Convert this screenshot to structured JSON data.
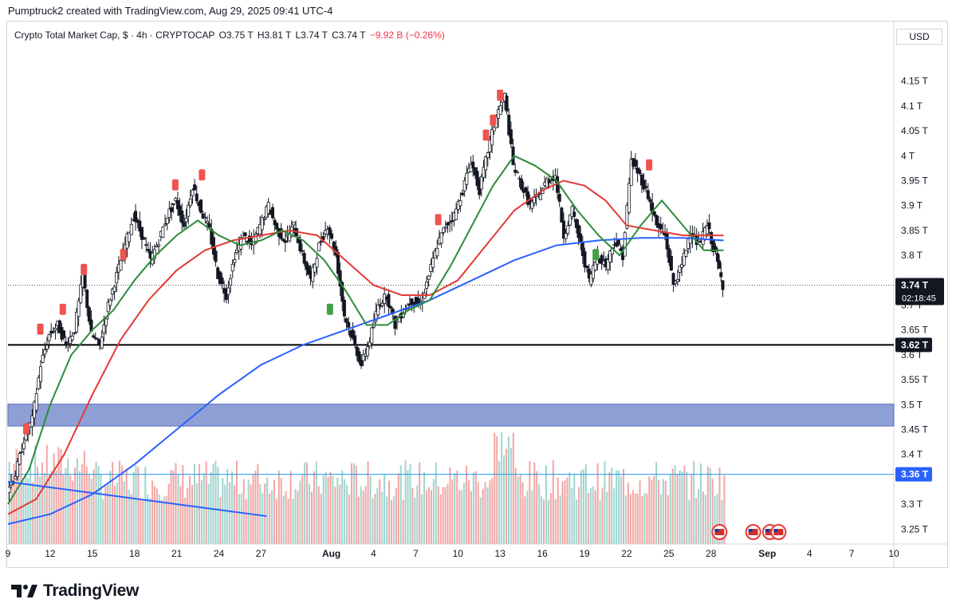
{
  "header": {
    "text": "Pumptruck2 created with TradingView.com, Aug 29, 2025 09:41 UTC-4"
  },
  "legend": {
    "symbol": "Crypto Total Market Cap, $ · 4h · CRYPTOCAP",
    "open_label": "O",
    "open": "3.75 T",
    "high_label": "H",
    "high": "3.81 T",
    "low_label": "L",
    "low": "3.74 T",
    "close_label": "C",
    "close": "3.74 T",
    "change": "−9.92 B (−0.26%)"
  },
  "axis_unit": "USD",
  "price_tag": {
    "value": "3.74 T",
    "countdown": "02:18:45"
  },
  "brand": {
    "name": "TradingView",
    "icon": "tradingview-logo-icon"
  },
  "colors": {
    "up": "#26a69a",
    "down": "#ef5350",
    "ema_fast": "#2e8b3a",
    "ema_mid": "#e53935",
    "ema_slow": "#2962ff",
    "zone": "#7b8fd0",
    "support": "#000000",
    "volume_up": "#9fd5cf",
    "volume_down": "#f3a6a4"
  },
  "chart_data": {
    "type": "candlestick",
    "y_ticks": [
      "4.15 T",
      "4.1 T",
      "4.05 T",
      "4 T",
      "3.95 T",
      "3.9 T",
      "3.85 T",
      "3.8 T",
      "3.7 T",
      "3.65 T",
      "3.6 T",
      "3.55 T",
      "3.5 T",
      "3.45 T",
      "3.4 T",
      "3.3 T",
      "3.25 T"
    ],
    "y_tick_values": [
      4.15,
      4.1,
      4.05,
      4.0,
      3.95,
      3.9,
      3.85,
      3.8,
      3.7,
      3.65,
      3.6,
      3.55,
      3.5,
      3.45,
      3.4,
      3.3,
      3.25
    ],
    "ylim": [
      3.22,
      4.22
    ],
    "x_ticks": [
      "9",
      "12",
      "15",
      "18",
      "21",
      "24",
      "27",
      "Aug",
      "4",
      "7",
      "10",
      "13",
      "16",
      "19",
      "22",
      "25",
      "28",
      "Sep",
      "4",
      "7",
      "10"
    ],
    "x_tick_days": [
      9,
      12,
      15,
      18,
      21,
      24,
      27,
      32,
      35,
      38,
      41,
      44,
      47,
      50,
      53,
      56,
      59,
      63,
      66,
      69,
      72
    ],
    "xlim_days": [
      9,
      72
    ],
    "x_note": "days counted from July 0, 2025 (Aug 1 = 32, Sep 1 = 63)",
    "support_level": {
      "value": 3.62,
      "label": "3.62 T"
    },
    "volume_level": {
      "value": 3.36,
      "label": "3.36 T"
    },
    "demand_zone": [
      3.457,
      3.501
    ],
    "ohlc_path": [
      [
        9,
        3.33
      ],
      [
        9.6,
        3.36
      ],
      [
        10.2,
        3.43
      ],
      [
        10.8,
        3.47
      ],
      [
        11.4,
        3.58
      ],
      [
        12,
        3.64
      ],
      [
        12.6,
        3.66
      ],
      [
        13.2,
        3.62
      ],
      [
        13.8,
        3.65
      ],
      [
        14.4,
        3.76
      ],
      [
        15,
        3.64
      ],
      [
        15.6,
        3.62
      ],
      [
        16.2,
        3.7
      ],
      [
        16.8,
        3.76
      ],
      [
        17.4,
        3.82
      ],
      [
        18,
        3.88
      ],
      [
        18.6,
        3.84
      ],
      [
        19.2,
        3.79
      ],
      [
        19.8,
        3.83
      ],
      [
        20.4,
        3.88
      ],
      [
        21,
        3.91
      ],
      [
        21.6,
        3.86
      ],
      [
        22.2,
        3.94
      ],
      [
        22.8,
        3.89
      ],
      [
        23.4,
        3.85
      ],
      [
        24,
        3.76
      ],
      [
        24.6,
        3.72
      ],
      [
        25.2,
        3.8
      ],
      [
        25.8,
        3.84
      ],
      [
        26.4,
        3.82
      ],
      [
        27,
        3.86
      ],
      [
        27.6,
        3.9
      ],
      [
        28.2,
        3.85
      ],
      [
        28.8,
        3.83
      ],
      [
        29.4,
        3.86
      ],
      [
        30,
        3.8
      ],
      [
        30.6,
        3.75
      ],
      [
        31.2,
        3.82
      ],
      [
        31.8,
        3.86
      ],
      [
        32.4,
        3.8
      ],
      [
        33,
        3.68
      ],
      [
        33.6,
        3.63
      ],
      [
        34.2,
        3.58
      ],
      [
        34.8,
        3.63
      ],
      [
        35.4,
        3.7
      ],
      [
        36,
        3.72
      ],
      [
        36.6,
        3.66
      ],
      [
        37.2,
        3.69
      ],
      [
        37.8,
        3.71
      ],
      [
        38.4,
        3.7
      ],
      [
        39,
        3.76
      ],
      [
        39.6,
        3.82
      ],
      [
        40.2,
        3.86
      ],
      [
        40.8,
        3.88
      ],
      [
        41.4,
        3.93
      ],
      [
        42,
        3.99
      ],
      [
        42.6,
        3.93
      ],
      [
        43.2,
        4.01
      ],
      [
        43.8,
        4.08
      ],
      [
        44.4,
        4.12
      ],
      [
        45,
        3.98
      ],
      [
        45.6,
        3.94
      ],
      [
        46.2,
        3.9
      ],
      [
        46.8,
        3.92
      ],
      [
        47.4,
        3.95
      ],
      [
        48,
        3.96
      ],
      [
        48.6,
        3.84
      ],
      [
        49.2,
        3.89
      ],
      [
        49.8,
        3.82
      ],
      [
        50.4,
        3.75
      ],
      [
        51,
        3.8
      ],
      [
        51.6,
        3.78
      ],
      [
        52.2,
        3.83
      ],
      [
        52.8,
        3.8
      ],
      [
        53.4,
        3.99
      ],
      [
        54,
        3.96
      ],
      [
        54.6,
        3.92
      ],
      [
        55.2,
        3.86
      ],
      [
        55.8,
        3.84
      ],
      [
        56.4,
        3.74
      ],
      [
        57,
        3.78
      ],
      [
        57.6,
        3.85
      ],
      [
        58.2,
        3.82
      ],
      [
        58.8,
        3.86
      ],
      [
        59.4,
        3.8
      ],
      [
        59.9,
        3.74
      ]
    ],
    "ema_fast_path": [
      [
        9,
        3.3
      ],
      [
        10.5,
        3.37
      ],
      [
        12,
        3.5
      ],
      [
        13.5,
        3.6
      ],
      [
        15,
        3.65
      ],
      [
        16.5,
        3.69
      ],
      [
        18,
        3.75
      ],
      [
        19.5,
        3.8
      ],
      [
        21,
        3.84
      ],
      [
        22.5,
        3.87
      ],
      [
        24,
        3.84
      ],
      [
        25.5,
        3.82
      ],
      [
        27,
        3.83
      ],
      [
        28.5,
        3.85
      ],
      [
        30,
        3.83
      ],
      [
        31.5,
        3.79
      ],
      [
        33,
        3.73
      ],
      [
        34.5,
        3.66
      ],
      [
        36,
        3.66
      ],
      [
        37.5,
        3.69
      ],
      [
        39,
        3.71
      ],
      [
        40.5,
        3.78
      ],
      [
        42,
        3.86
      ],
      [
        43.5,
        3.94
      ],
      [
        45,
        4.0
      ],
      [
        46.5,
        3.98
      ],
      [
        48,
        3.95
      ],
      [
        49.5,
        3.89
      ],
      [
        51,
        3.84
      ],
      [
        52.5,
        3.8
      ],
      [
        54,
        3.86
      ],
      [
        55.5,
        3.91
      ],
      [
        57,
        3.86
      ],
      [
        58.5,
        3.81
      ],
      [
        59.9,
        3.81
      ]
    ],
    "ema_mid_path": [
      [
        9,
        3.28
      ],
      [
        11,
        3.31
      ],
      [
        13,
        3.4
      ],
      [
        15,
        3.52
      ],
      [
        17,
        3.63
      ],
      [
        19,
        3.71
      ],
      [
        21,
        3.77
      ],
      [
        23,
        3.81
      ],
      [
        25,
        3.83
      ],
      [
        27,
        3.84
      ],
      [
        29,
        3.85
      ],
      [
        31,
        3.84
      ],
      [
        33,
        3.79
      ],
      [
        35,
        3.74
      ],
      [
        37,
        3.72
      ],
      [
        39,
        3.72
      ],
      [
        41,
        3.75
      ],
      [
        43,
        3.82
      ],
      [
        45,
        3.89
      ],
      [
        47,
        3.93
      ],
      [
        48.5,
        3.95
      ],
      [
        50,
        3.94
      ],
      [
        51.5,
        3.91
      ],
      [
        53,
        3.86
      ],
      [
        55,
        3.85
      ],
      [
        57,
        3.84
      ],
      [
        58.5,
        3.84
      ],
      [
        59.9,
        3.84
      ]
    ],
    "ema_slow_path": [
      [
        9,
        3.26
      ],
      [
        12,
        3.28
      ],
      [
        15,
        3.32
      ],
      [
        18,
        3.38
      ],
      [
        21,
        3.45
      ],
      [
        24,
        3.52
      ],
      [
        27,
        3.58
      ],
      [
        30,
        3.62
      ],
      [
        33,
        3.65
      ],
      [
        36,
        3.68
      ],
      [
        39,
        3.71
      ],
      [
        42,
        3.75
      ],
      [
        45,
        3.79
      ],
      [
        48,
        3.82
      ],
      [
        51,
        3.83
      ],
      [
        54,
        3.835
      ],
      [
        57,
        3.835
      ],
      [
        59.9,
        3.83
      ]
    ],
    "blue_trendline": [
      [
        9,
        3.345
      ],
      [
        27.4,
        3.276
      ]
    ],
    "volume_bars": "up/down histogram along bottom, relative heights",
    "signals": [
      {
        "day": 10.3,
        "price": 3.45,
        "type": "down"
      },
      {
        "day": 11.3,
        "price": 3.65,
        "type": "down"
      },
      {
        "day": 12.9,
        "price": 3.69,
        "type": "down"
      },
      {
        "day": 14.4,
        "price": 3.77,
        "type": "down"
      },
      {
        "day": 17.2,
        "price": 3.8,
        "type": "down"
      },
      {
        "day": 20.9,
        "price": 3.94,
        "type": "down"
      },
      {
        "day": 22.8,
        "price": 3.96,
        "type": "down"
      },
      {
        "day": 31.9,
        "price": 3.69,
        "type": "up"
      },
      {
        "day": 39.6,
        "price": 3.87,
        "type": "down"
      },
      {
        "day": 43.0,
        "price": 4.04,
        "type": "down"
      },
      {
        "day": 43.5,
        "price": 4.07,
        "type": "down"
      },
      {
        "day": 44.0,
        "price": 4.12,
        "type": "down"
      },
      {
        "day": 50.8,
        "price": 3.8,
        "type": "up"
      },
      {
        "day": 54.6,
        "price": 3.98,
        "type": "down"
      }
    ],
    "event_flags_days": [
      59.6,
      62.0,
      63.2,
      63.8
    ]
  }
}
